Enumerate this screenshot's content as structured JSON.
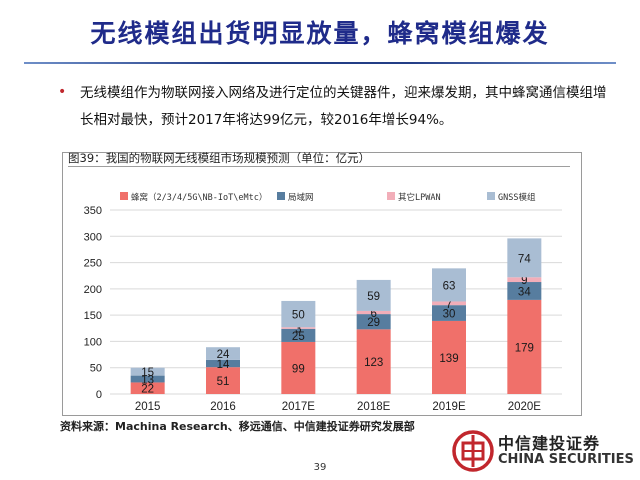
{
  "slide": {
    "title": "无线模组出货明显放量，蜂窝模组爆发",
    "bullet": "无线模组作为物联网接入网络及进行定位的关键器件，迎来爆发期，其中蜂窝通信模组增长相对最快，预计2017年将达99亿元，较2016年增长94%。",
    "caption": "图39：我国的物联网无线模组市场规模预测（单位：亿元）",
    "source": "资料来源：Machina Research、移远通信、中信建投证券研究发展部",
    "page_number": "39",
    "logo_cn": "中信建投证券",
    "logo_en": "CHINA SECURITIES"
  },
  "colors": {
    "title": "#1f2b8a",
    "cellular": "#f0706a",
    "lan": "#577d9f",
    "lpwan": "#f2aeb9",
    "gnss": "#a9bdd3",
    "logo_red": "#c1272d"
  },
  "chart_data": {
    "type": "bar",
    "stacked": true,
    "categories": [
      "2015",
      "2016",
      "2017E",
      "2018E",
      "2019E",
      "2020E"
    ],
    "series": [
      {
        "name": "蜂窝（2/3/4/5G\\NB-IoT\\eMtc）",
        "color": "#f0706a",
        "values": [
          22,
          51,
          99,
          123,
          139,
          179
        ]
      },
      {
        "name": "局域网",
        "color": "#577d9f",
        "values": [
          13,
          14,
          25,
          29,
          30,
          34
        ]
      },
      {
        "name": "其它LPWAN",
        "color": "#f2aeb9",
        "values": [
          null,
          null,
          3,
          6,
          7,
          9
        ]
      },
      {
        "name": "GNSS模组",
        "color": "#a9bdd3",
        "values": [
          15,
          24,
          50,
          59,
          63,
          74
        ]
      }
    ],
    "ylim": [
      0,
      350
    ],
    "yticks": [
      0,
      50,
      100,
      150,
      200,
      250,
      300,
      350
    ],
    "grid": true,
    "legend": "top"
  }
}
